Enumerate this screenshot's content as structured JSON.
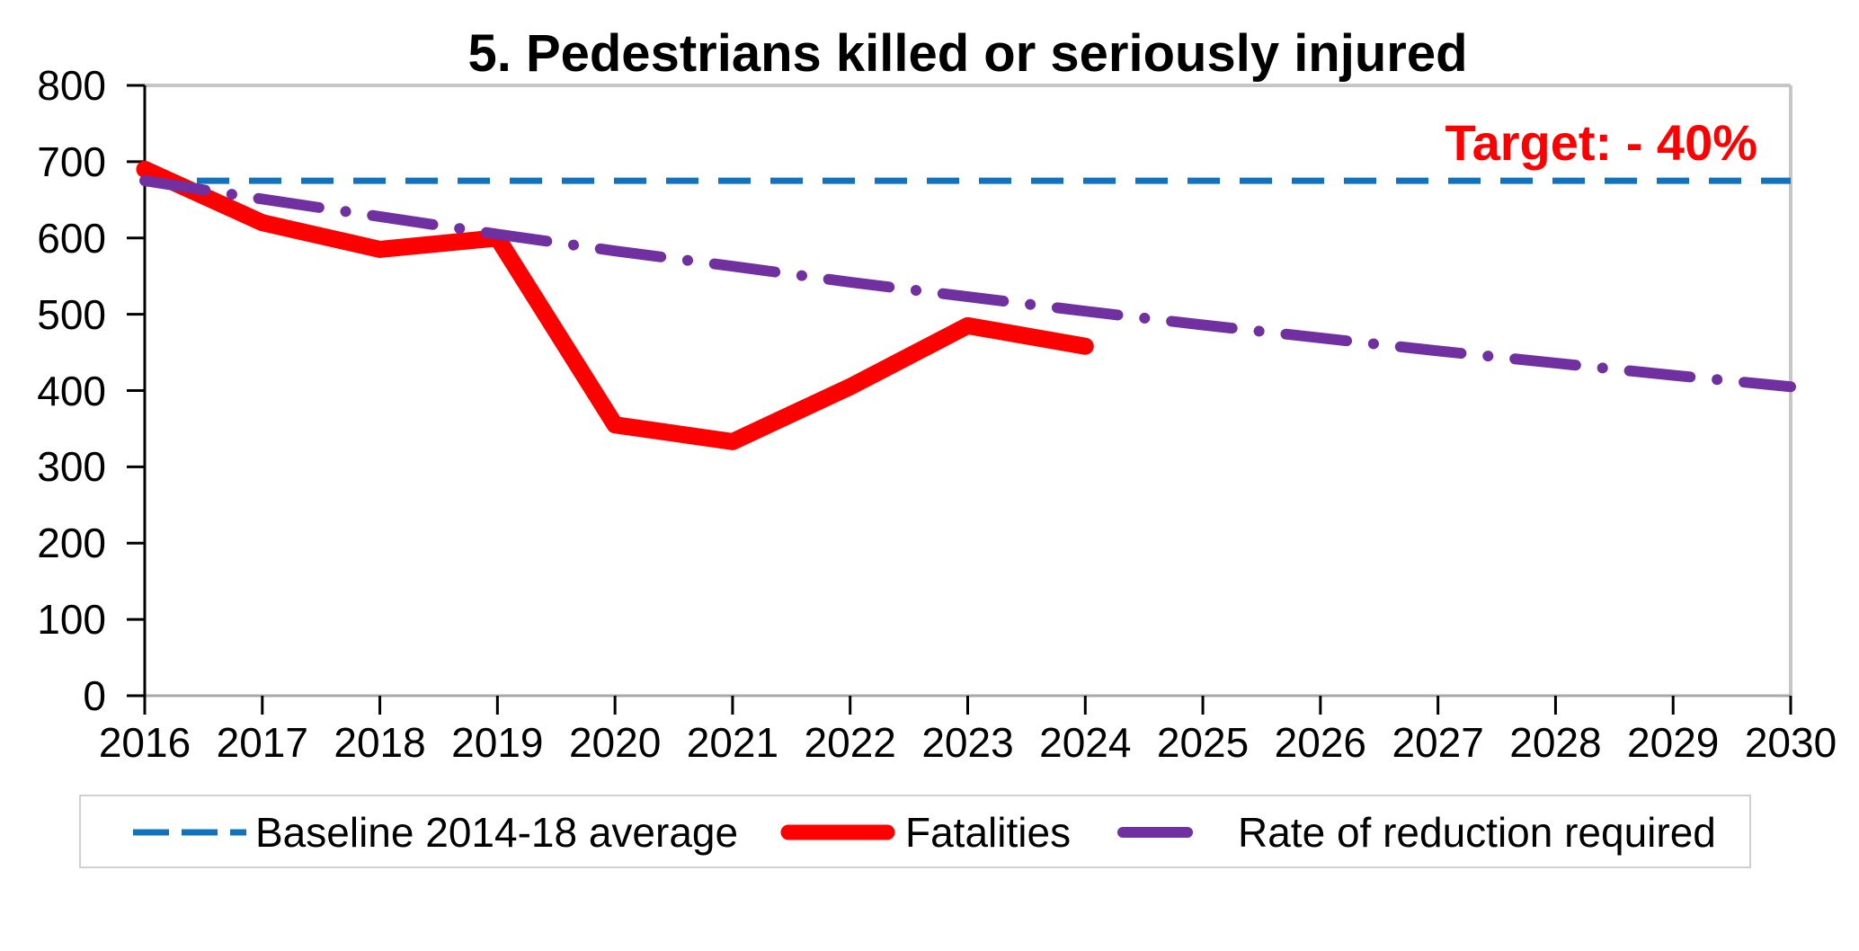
{
  "chart_data": {
    "type": "line",
    "title": "5. Pedestrians killed or seriously injured",
    "annotation": {
      "text": "Target: - 40%",
      "color": "#ff0000"
    },
    "xlabel": "",
    "ylabel": "",
    "ylim": [
      0,
      800
    ],
    "y_ticks": [
      0,
      100,
      200,
      300,
      400,
      500,
      600,
      700,
      800
    ],
    "x_ticks": [
      2016,
      2017,
      2018,
      2019,
      2020,
      2021,
      2022,
      2023,
      2024,
      2025,
      2026,
      2027,
      2028,
      2029,
      2030
    ],
    "grid": false,
    "legend_position": "bottom",
    "series": [
      {
        "name": "Baseline 2014-18 average",
        "style": "dashed",
        "color": "#1173bd",
        "x": [
          2016,
          2030
        ],
        "values": [
          675,
          675
        ]
      },
      {
        "name": "Fatalities",
        "style": "solid",
        "color": "#ff0000",
        "x": [
          2016,
          2017,
          2018,
          2019,
          2020,
          2021,
          2022,
          2023,
          2024
        ],
        "values": [
          690,
          620,
          585,
          600,
          355,
          333,
          405,
          485,
          458
        ]
      },
      {
        "name": "Rate of reduction required",
        "style": "dash-dot",
        "color": "#7030a0",
        "x": [
          2016,
          2017,
          2018,
          2019,
          2020,
          2021,
          2022,
          2023,
          2024,
          2025,
          2026,
          2027,
          2028,
          2029,
          2030
        ],
        "values": [
          675,
          651,
          628,
          605,
          583,
          563,
          542,
          523,
          504,
          486,
          469,
          452,
          436,
          420,
          405
        ]
      }
    ]
  }
}
